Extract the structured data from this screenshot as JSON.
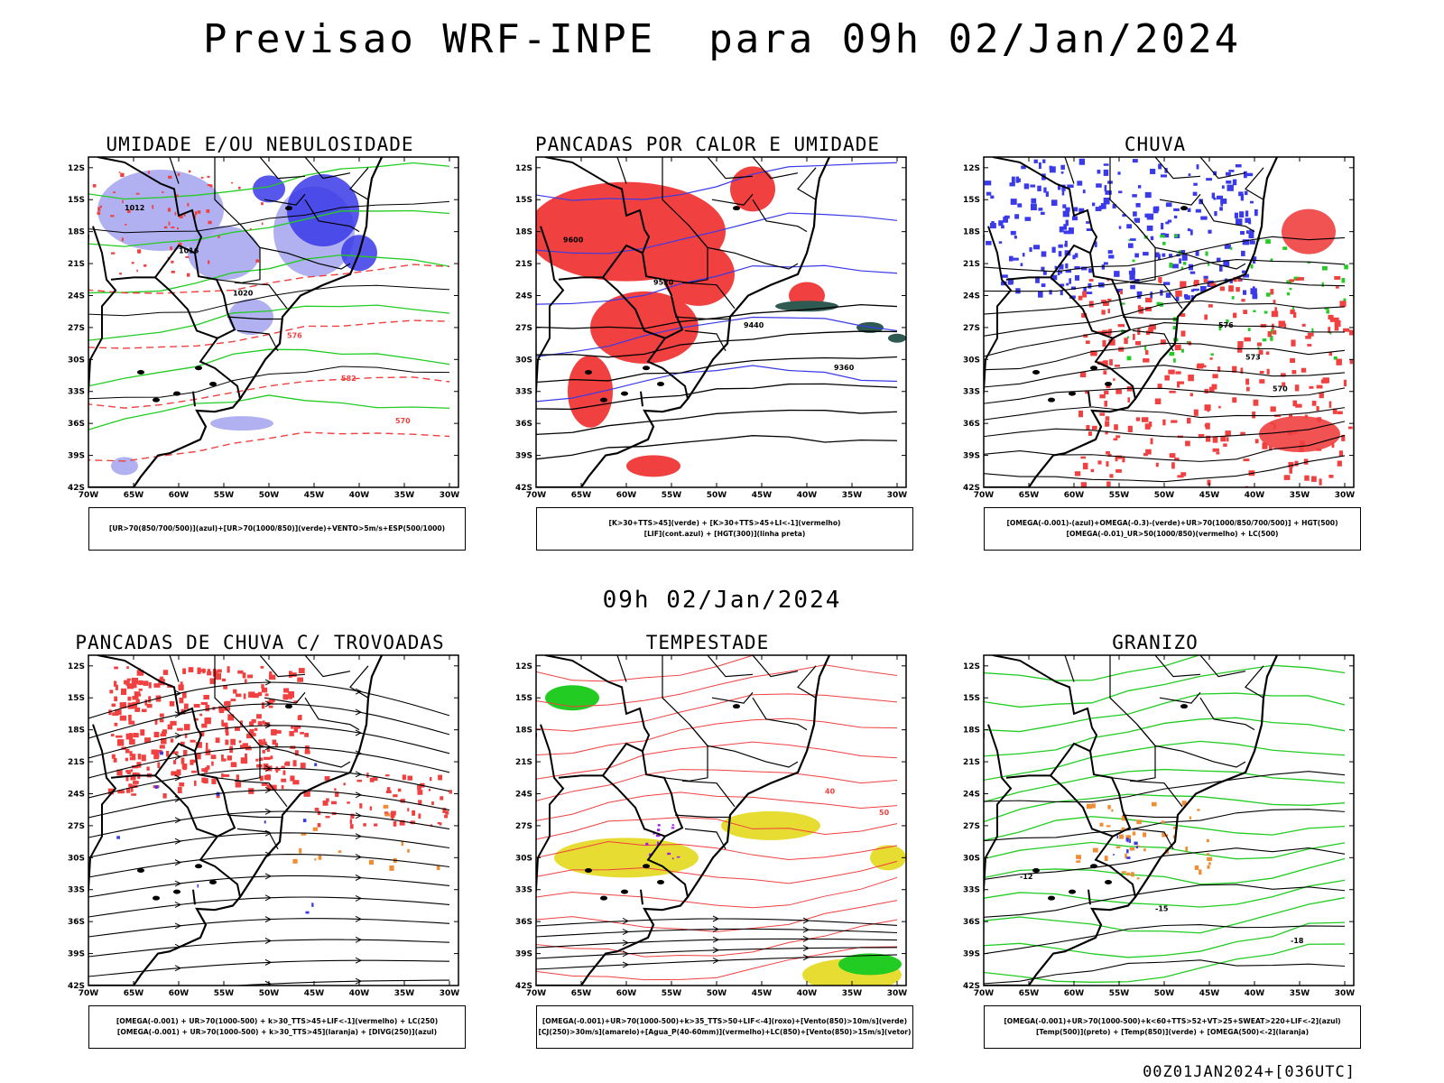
{
  "header": {
    "title": "Previsao WRF-INPE  para 09h 02/Jan/2024",
    "mid_title": "09h 02/Jan/2024",
    "footer": "00Z01JAN2024+[036UTC]"
  },
  "axes": {
    "lat_labels": [
      "12S",
      "15S",
      "18S",
      "21S",
      "24S",
      "27S",
      "30S",
      "33S",
      "36S",
      "39S",
      "42S"
    ],
    "lon_labels": [
      "70W",
      "65W",
      "60W",
      "55W",
      "50W",
      "45W",
      "40W",
      "35W",
      "30W"
    ]
  },
  "colors": {
    "red": "#f04040",
    "blue": "#3a3ae8",
    "lightblue": "#a8a8f0",
    "green": "#22cc22",
    "darkgreen": "#2f5a52",
    "yellow": "#e6dc32",
    "orange": "#f08c32",
    "purple": "#a020f0"
  },
  "panels": [
    {
      "title": "UMIDADE E/OU NEBULOSIDADE",
      "legend": [
        "[UR>70(850/700/500)](azul)+[UR>70(1000/850)](verde)+VENTO>5m/s+ESP(500/1000)"
      ],
      "contour_labels": [
        "1012",
        "1016",
        "1020",
        "576",
        "582",
        "570"
      ]
    },
    {
      "title": "PANCADAS POR CALOR E UMIDADE",
      "legend": [
        "[K>30+TTS>45](verde) + [K>30+TTS>45+LI<-1](vermelho)",
        "[LIF](cont.azul) + [HGT(300)](linha preta)"
      ],
      "contour_labels": [
        "9600",
        "9520",
        "9440",
        "9360"
      ]
    },
    {
      "title": "CHUVA",
      "legend": [
        "[OMEGA(-0.001)-(azul)+OMEGA(-0.3)-(verde)+UR>70(1000/850/700/500)] + HGT(500)",
        "[OMEGA(-0.01)_UR>50(1000/850)(vermelho) + LC(500)"
      ],
      "contour_labels": [
        "576",
        "573",
        "570"
      ]
    },
    {
      "title": "PANCADAS DE CHUVA C/ TROVOADAS",
      "legend": [
        "[OMEGA(-0.001) + UR>70(1000-500) + k>30_TTS>45+LIF<-1](vermelho) + LC(250)",
        "[OMEGA(-0.001) + UR>70(1000-500) + k>30_TTS>45](laranja) + [DIVG(250)](azul)"
      ],
      "contour_labels": []
    },
    {
      "title": "TEMPESTADE",
      "legend": [
        "[OMEGA(-0.001)+UR>70(1000-500)+k>35_TTS>50+LIF<-4](roxo)+[Vento(850)>10m/s](verde)",
        "[CJ(250)>30m/s](amarelo)+[Agua_P(40-60mm)](vermelho)+LC(850)+[Vento(850)>15m/s](vetor)"
      ],
      "contour_labels": [
        "40",
        "50"
      ]
    },
    {
      "title": "GRANIZO",
      "legend": [
        "[OMEGA(-0.001)+UR>70(1000-500)+k<60+TTS>52+VT>25+SWEAT>220+LIF<-2](azul)",
        "[Temp(500)](preto) + [Temp(850)](verde) + [OMEGA(500)<-2](laranja)"
      ],
      "contour_labels": [
        "-12",
        "-15",
        "-18"
      ]
    }
  ]
}
